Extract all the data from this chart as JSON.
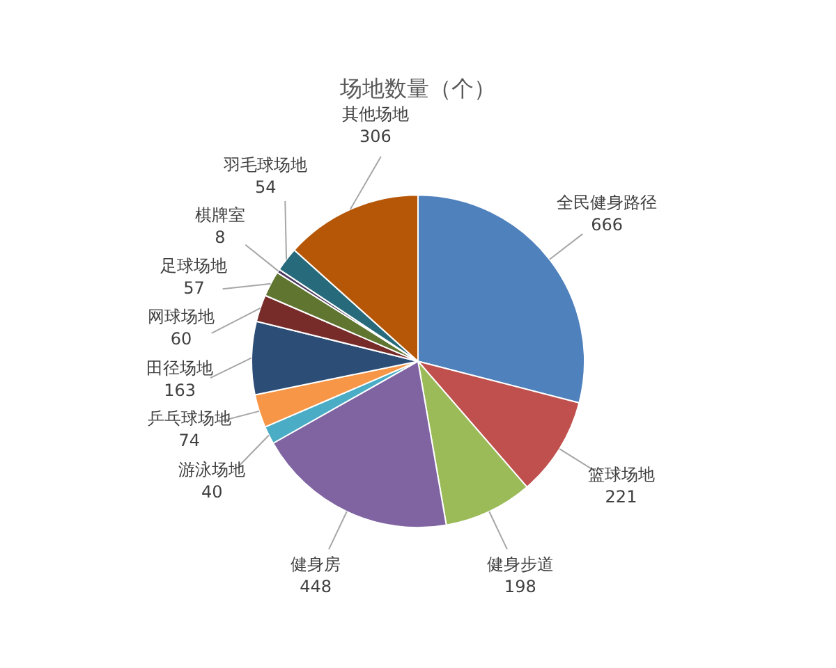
{
  "chart_data": {
    "type": "pie",
    "title": "场地数量（个）",
    "categories": [
      "全民健身路径",
      "篮球场地",
      "健身步道",
      "健身房",
      "游泳场地",
      "乒乓球场地",
      "田径场地",
      "网球场地",
      "足球场地",
      "棋牌室",
      "羽毛球场地",
      "其他场地"
    ],
    "values": [
      666,
      221,
      198,
      448,
      40,
      74,
      163,
      60,
      57,
      8,
      54,
      306
    ],
    "colors": [
      "#4f81bd",
      "#c0504d",
      "#9bbb59",
      "#8064a2",
      "#4bacc6",
      "#f79646",
      "#2c4d75",
      "#772c2a",
      "#5f7530",
      "#4d3b62",
      "#276a7c",
      "#b65708"
    ],
    "data_labels": true,
    "legend": false
  }
}
